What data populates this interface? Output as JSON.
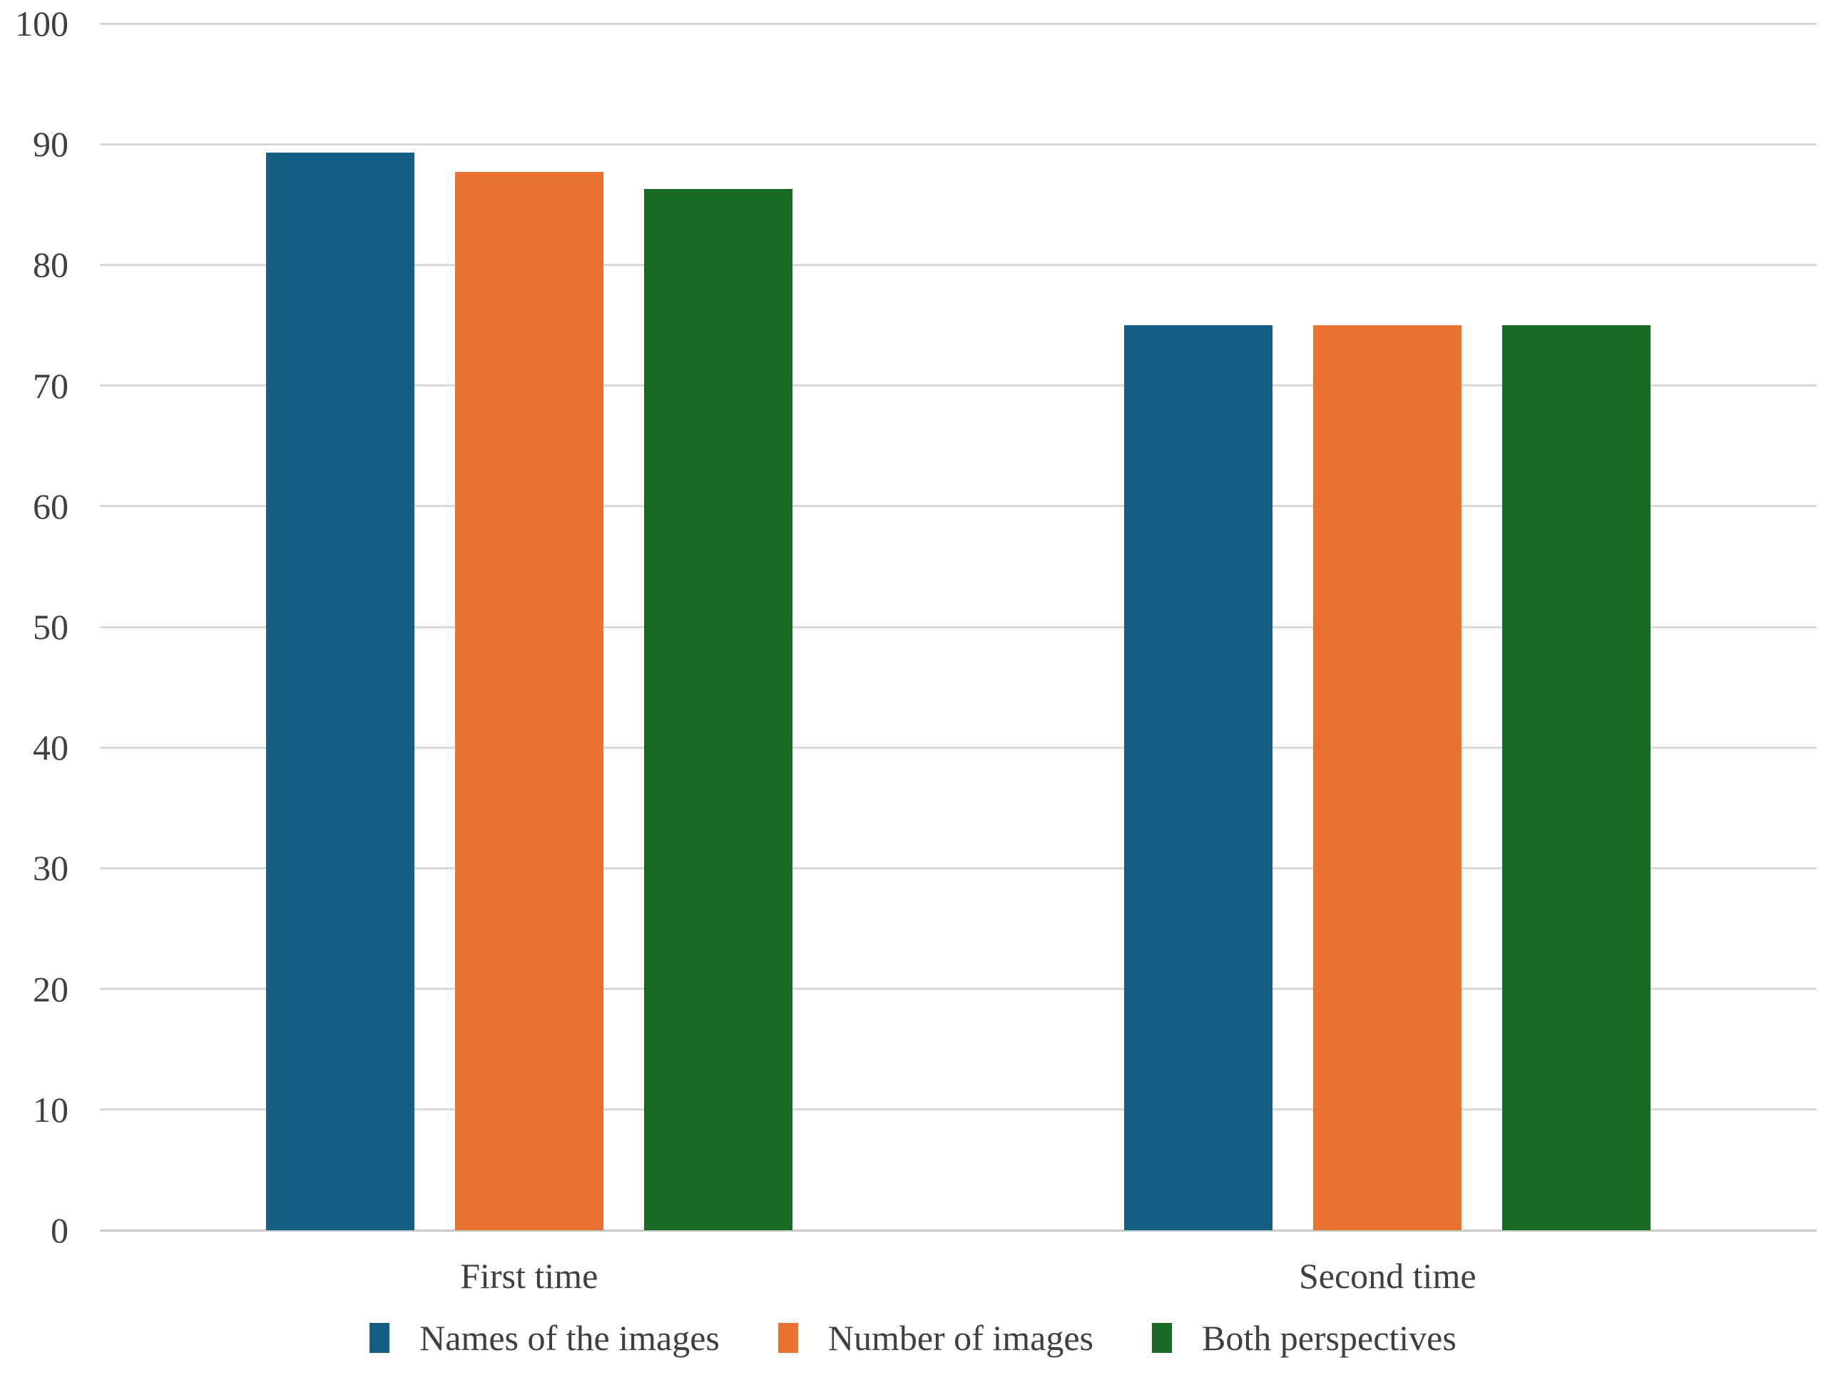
{
  "chart_data": {
    "type": "bar",
    "categories": [
      "First time",
      "Second time"
    ],
    "series": [
      {
        "name": "Names of the images",
        "color": "#156082",
        "values": [
          89.3,
          75
        ]
      },
      {
        "name": "Number of images",
        "color": "#E97132",
        "values": [
          87.7,
          75
        ]
      },
      {
        "name": "Both perspectives",
        "color": "#196B24",
        "values": [
          86.3,
          75
        ]
      }
    ],
    "title": "",
    "xlabel": "",
    "ylabel": "",
    "ylim": [
      0,
      100
    ],
    "yticks": [
      0,
      10,
      20,
      30,
      40,
      50,
      60,
      70,
      80,
      90,
      100
    ],
    "grid": true,
    "gridline_color": "#D9D9D9",
    "axis_text_color": "#3F3F3F",
    "background_color": "#FFFFFF",
    "legend_position": "bottom",
    "legend": [
      "Names of the images",
      "Number of images",
      "Both perspectives"
    ]
  }
}
